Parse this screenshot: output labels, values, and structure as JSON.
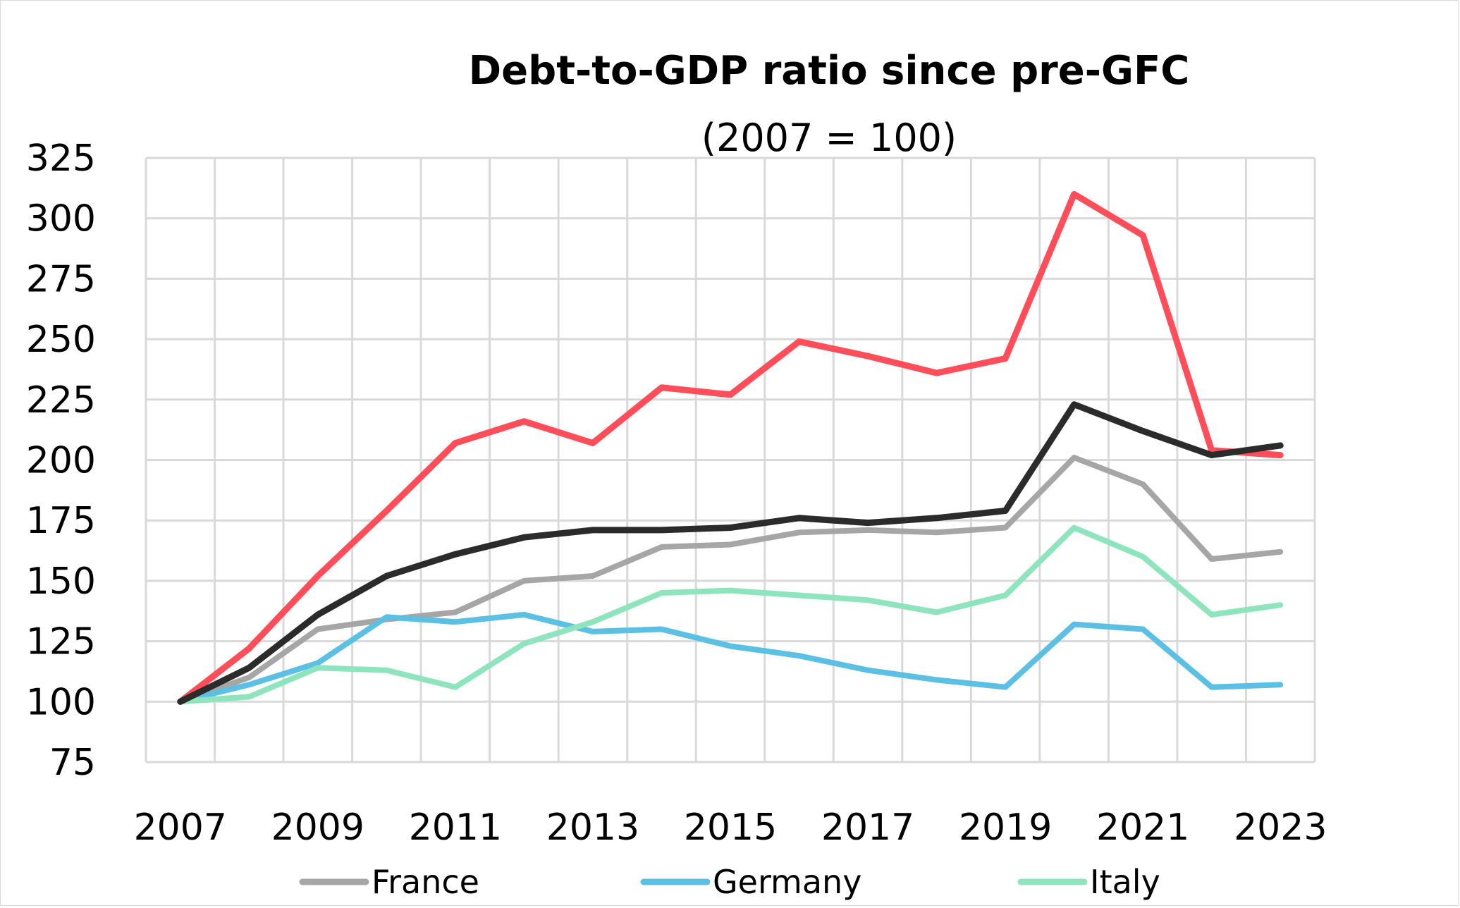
{
  "chart_data": {
    "type": "line",
    "title": "Debt-to-GDP ratio since pre-GFC",
    "subtitle": "(2007 = 100)",
    "xlabel": "",
    "ylabel": "",
    "ylim": [
      75,
      325
    ],
    "yticks": [
      75,
      100,
      125,
      150,
      175,
      200,
      225,
      250,
      275,
      300,
      325
    ],
    "x": [
      2007,
      2008,
      2009,
      2010,
      2011,
      2012,
      2013,
      2014,
      2015,
      2016,
      2017,
      2018,
      2019,
      2020,
      2021,
      2022,
      2023
    ],
    "xtick_labels": [
      "2007",
      "2009",
      "2011",
      "2013",
      "2015",
      "2017",
      "2019",
      "2021",
      "2023"
    ],
    "grid": true,
    "legend_position": "bottom",
    "series": [
      {
        "name": "France",
        "color": "#a6a6a6",
        "in_legend": true,
        "values": [
          100,
          110,
          130,
          134,
          137,
          150,
          152,
          164,
          165,
          170,
          171,
          170,
          172,
          201,
          190,
          159,
          162
        ]
      },
      {
        "name": "Germany",
        "color": "#5bc0e3",
        "in_legend": true,
        "values": [
          100,
          107,
          116,
          135,
          133,
          136,
          129,
          130,
          123,
          119,
          113,
          109,
          106,
          132,
          130,
          106,
          107
        ]
      },
      {
        "name": "Italy",
        "color": "#8ee5bd",
        "in_legend": true,
        "values": [
          100,
          102,
          114,
          113,
          106,
          124,
          133,
          145,
          146,
          144,
          142,
          137,
          144,
          172,
          160,
          136,
          140
        ]
      },
      {
        "name": "",
        "color": "#ff4d5a",
        "in_legend": false,
        "values": [
          100,
          122,
          152,
          179,
          207,
          216,
          207,
          230,
          227,
          249,
          243,
          236,
          242,
          310,
          293,
          204,
          202
        ]
      },
      {
        "name": "",
        "color": "#2b2b2b",
        "in_legend": false,
        "values": [
          100,
          114,
          136,
          152,
          161,
          168,
          171,
          171,
          172,
          176,
          174,
          176,
          179,
          223,
          212,
          202,
          206
        ]
      }
    ]
  }
}
